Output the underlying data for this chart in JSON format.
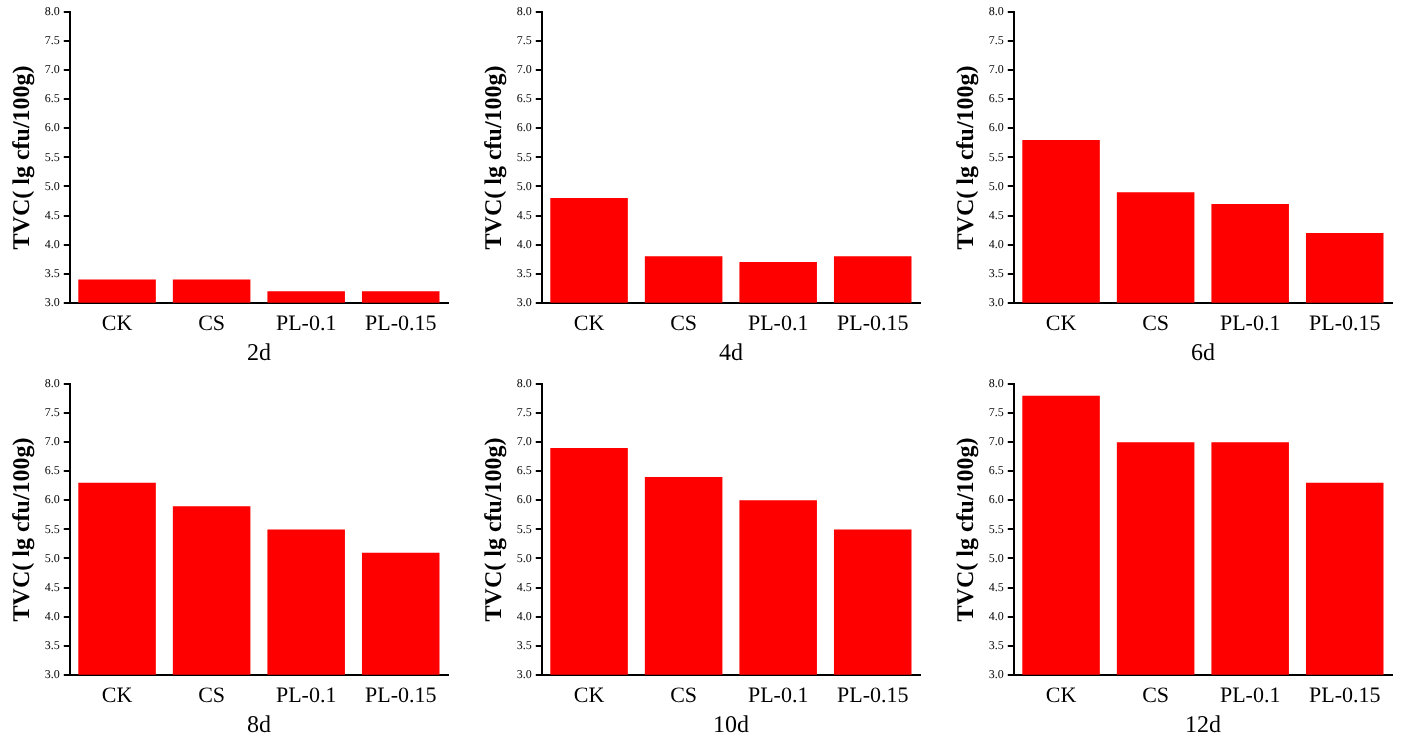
{
  "chart_data": [
    {
      "type": "bar",
      "xlabel": "2d",
      "ylabel": "TVC( lg cfu/100g)",
      "categories": [
        "CK",
        "CS",
        "PL-0.1",
        "PL-0.15"
      ],
      "values": [
        3.4,
        3.4,
        3.2,
        3.2
      ],
      "color": "#ff0000",
      "ylim": [
        3,
        8
      ],
      "yticks": [
        {
          "value": 3,
          "label": "3.0"
        },
        3.5,
        {
          "value": 4,
          "label": "4.0"
        },
        4.5,
        {
          "value": 5,
          "label": "5.0"
        },
        5.5,
        {
          "value": 6,
          "label": "6.0"
        },
        6.5,
        {
          "value": 7,
          "label": "7.0"
        },
        7.5,
        {
          "value": 8,
          "label": "8.0"
        }
      ],
      "grid": false,
      "legend": false
    },
    {
      "type": "bar",
      "xlabel": "4d",
      "ylabel": "TVC( lg cfu/100g)",
      "categories": [
        "CK",
        "CS",
        "PL-0.1",
        "PL-0.15"
      ],
      "values": [
        4.8,
        3.8,
        3.7,
        3.8
      ],
      "color": "#ff0000",
      "ylim": [
        3,
        8
      ],
      "yticks": [
        {
          "value": 3,
          "label": "3.0"
        },
        3.5,
        {
          "value": 4,
          "label": "4.0"
        },
        4.5,
        {
          "value": 5,
          "label": "5.0"
        },
        5.5,
        {
          "value": 6,
          "label": "6.0"
        },
        6.5,
        {
          "value": 7,
          "label": "7.0"
        },
        7.5,
        {
          "value": 8,
          "label": "8.0"
        }
      ],
      "grid": false,
      "legend": false
    },
    {
      "type": "bar",
      "xlabel": "6d",
      "ylabel": "TVC( lg cfu/100g)",
      "categories": [
        "CK",
        "CS",
        "PL-0.1",
        "PL-0.15"
      ],
      "values": [
        5.8,
        4.9,
        4.7,
        4.2
      ],
      "color": "#ff0000",
      "ylim": [
        3,
        8
      ],
      "yticks": [
        {
          "value": 3,
          "label": "3.0"
        },
        3.5,
        {
          "value": 4,
          "label": "4.0"
        },
        4.5,
        {
          "value": 5,
          "label": "5.0"
        },
        5.5,
        {
          "value": 6,
          "label": "6.0"
        },
        6.5,
        {
          "value": 7,
          "label": "7.0"
        },
        7.5,
        {
          "value": 8,
          "label": "8.0"
        }
      ],
      "grid": false,
      "legend": false
    },
    {
      "type": "bar",
      "xlabel": "8d",
      "ylabel": "TVC( lg cfu/100g)",
      "categories": [
        "CK",
        "CS",
        "PL-0.1",
        "PL-0.15"
      ],
      "values": [
        6.3,
        5.9,
        5.5,
        5.1
      ],
      "color": "#ff0000",
      "ylim": [
        3,
        8
      ],
      "yticks": [
        {
          "value": 3,
          "label": "3.0"
        },
        3.5,
        {
          "value": 4,
          "label": "4.0"
        },
        4.5,
        {
          "value": 5,
          "label": "5.0"
        },
        5.5,
        {
          "value": 6,
          "label": "6.0"
        },
        6.5,
        {
          "value": 7,
          "label": "7.0"
        },
        7.5,
        {
          "value": 8,
          "label": "8.0"
        }
      ],
      "grid": false,
      "legend": false
    },
    {
      "type": "bar",
      "xlabel": "10d",
      "ylabel": "TVC( lg cfu/100g)",
      "categories": [
        "CK",
        "CS",
        "PL-0.1",
        "PL-0.15"
      ],
      "values": [
        6.9,
        6.4,
        6.0,
        5.5
      ],
      "color": "#ff0000",
      "ylim": [
        3,
        8
      ],
      "yticks": [
        {
          "value": 3,
          "label": "3.0"
        },
        3.5,
        {
          "value": 4,
          "label": "4.0"
        },
        4.5,
        {
          "value": 5,
          "label": "5.0"
        },
        5.5,
        {
          "value": 6,
          "label": "6.0"
        },
        6.5,
        {
          "value": 7,
          "label": "7.0"
        },
        7.5,
        {
          "value": 8,
          "label": "8.0"
        }
      ],
      "grid": false,
      "legend": false
    },
    {
      "type": "bar",
      "xlabel": "12d",
      "ylabel": "TVC( lg cfu/100g)",
      "categories": [
        "CK",
        "CS",
        "PL-0.1",
        "PL-0.15"
      ],
      "values": [
        7.8,
        7.0,
        7.0,
        6.3
      ],
      "color": "#ff0000",
      "ylim": [
        3,
        8
      ],
      "yticks": [
        {
          "value": 3,
          "label": "3.0"
        },
        3.5,
        {
          "value": 4,
          "label": "4.0"
        },
        4.5,
        {
          "value": 5,
          "label": "5.0"
        },
        5.5,
        {
          "value": 6,
          "label": "6.0"
        },
        6.5,
        {
          "value": 7,
          "label": "7.0"
        },
        7.5,
        {
          "value": 8,
          "label": "8.0"
        }
      ],
      "grid": false,
      "legend": false
    }
  ]
}
